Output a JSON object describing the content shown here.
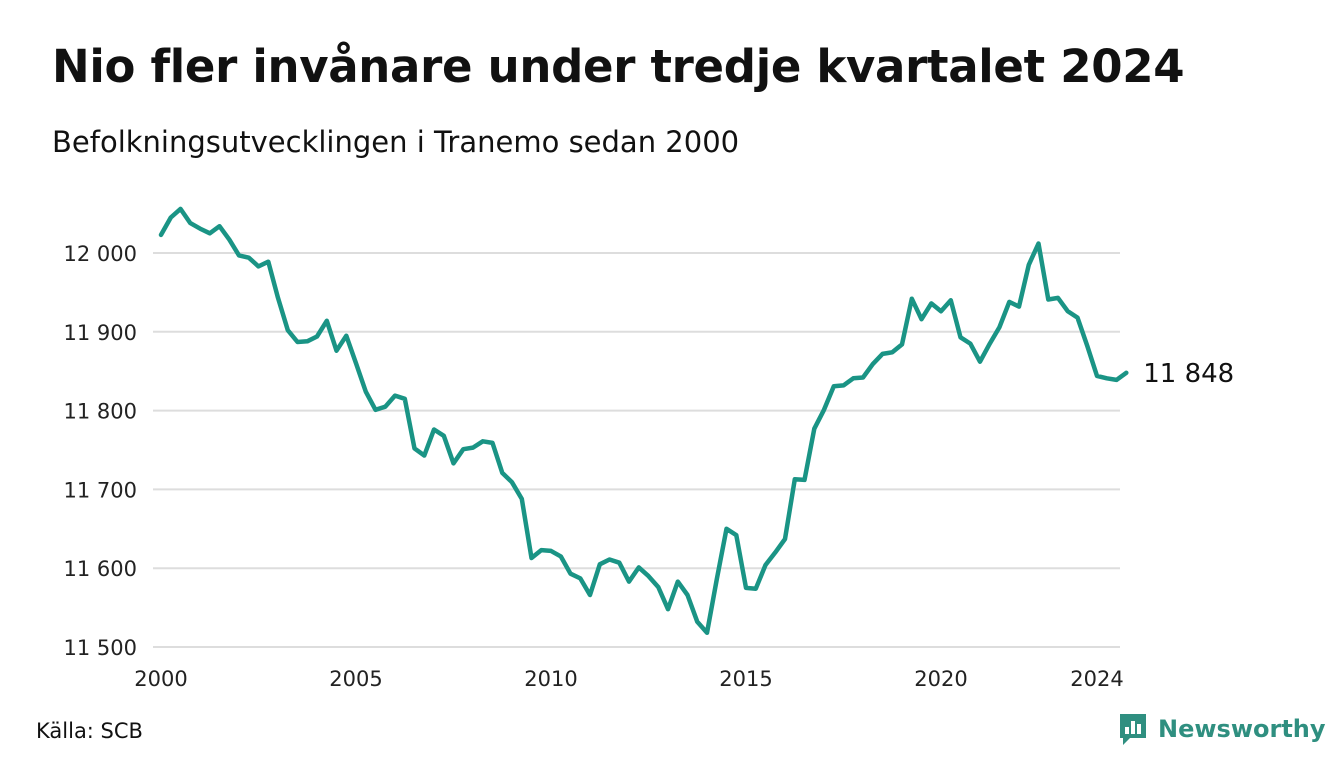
{
  "title": "Nio fler invånare under tredje kvartalet 2024",
  "subtitle": "Befolkningsutvecklingen i Tranemo sedan 2000",
  "source": "Källa: SCB",
  "brand": {
    "name": "Newsworthy",
    "icon": "newsworthy-logo-icon",
    "color": "#2f8f80"
  },
  "colors": {
    "line": "#1a9485",
    "grid": "#dddddd"
  },
  "chart_data": {
    "type": "line",
    "title": "Nio fler invånare under tredje kvartalet 2024",
    "subtitle": "Befolkningsutvecklingen i Tranemo sedan 2000",
    "xlabel": "",
    "ylabel": "",
    "xlim": [
      2000,
      2024.75
    ],
    "ylim": [
      11500,
      12020
    ],
    "x_ticks": [
      2000,
      2005,
      2010,
      2015,
      2020,
      2024
    ],
    "x_tick_labels": [
      "2000",
      "2005",
      "2010",
      "2015",
      "2020",
      "2024"
    ],
    "y_ticks": [
      11500,
      11600,
      11700,
      11800,
      11900,
      12000
    ],
    "y_tick_labels": [
      "11 500",
      "11 600",
      "11 700",
      "11 800",
      "11 900",
      "12 000"
    ],
    "grid": "horizontal",
    "end_label": "11 848",
    "series": [
      {
        "x": [
          2000.0,
          2000.25,
          2000.5,
          2000.75,
          2001.0,
          2001.25,
          2001.5,
          2001.75,
          2002.0,
          2002.25,
          2002.5,
          2002.75,
          2003.0,
          2003.25,
          2003.5,
          2003.75,
          2004.0,
          2004.25,
          2004.5,
          2004.75,
          2005.0,
          2005.25,
          2005.5,
          2005.75,
          2006.0,
          2006.25,
          2006.5,
          2006.75,
          2007.0,
          2007.25,
          2007.5,
          2007.75,
          2008.0,
          2008.25,
          2008.5,
          2008.75,
          2009.0,
          2009.25,
          2009.5,
          2009.75,
          2010.0,
          2010.25,
          2010.5,
          2010.75,
          2011.0,
          2011.25,
          2011.5,
          2011.75,
          2012.0,
          2012.25,
          2012.5,
          2012.75,
          2013.0,
          2013.25,
          2013.5,
          2013.75,
          2014.0,
          2014.25,
          2014.5,
          2014.75,
          2015.0,
          2015.25,
          2015.5,
          2015.75,
          2016.0,
          2016.25,
          2016.5,
          2016.75,
          2017.0,
          2017.25,
          2017.5,
          2017.75,
          2018.0,
          2018.25,
          2018.5,
          2018.75,
          2019.0,
          2019.25,
          2019.5,
          2019.75,
          2020.0,
          2020.25,
          2020.5,
          2020.75,
          2021.0,
          2021.25,
          2021.5,
          2021.75,
          2022.0,
          2022.25,
          2022.5,
          2022.75,
          2023.0,
          2023.25,
          2023.5,
          2023.75,
          2024.0,
          2024.25,
          2024.5,
          2024.75
        ],
        "values": [
          12023,
          12045,
          12056,
          12038,
          12031,
          12025,
          12034,
          12017,
          11997,
          11994,
          11983,
          11989,
          11943,
          11902,
          11887,
          11888,
          11894,
          11914,
          11876,
          11895,
          11860,
          11824,
          11801,
          11805,
          11819,
          11815,
          11752,
          11743,
          11776,
          11768,
          11733,
          11751,
          11753,
          11761,
          11759,
          11721,
          11709,
          11688,
          11613,
          11623,
          11622,
          11615,
          11593,
          11587,
          11566,
          11605,
          11611,
          11607,
          11583,
          11601,
          11590,
          11576,
          11548,
          11583,
          11566,
          11532,
          11518,
          11586,
          11650,
          11642,
          11575,
          11574,
          11604,
          11620,
          11637,
          11713,
          11712,
          11777,
          11801,
          11831,
          11832,
          11841,
          11842,
          11859,
          11872,
          11874,
          11884,
          11942,
          11916,
          11936,
          11926,
          11940,
          11893,
          11885,
          11862,
          11885,
          11906,
          11938,
          11932,
          11985,
          12012,
          11941,
          11943,
          11926,
          11918,
          11882,
          11844,
          11841,
          11839,
          11848
        ]
      }
    ]
  }
}
